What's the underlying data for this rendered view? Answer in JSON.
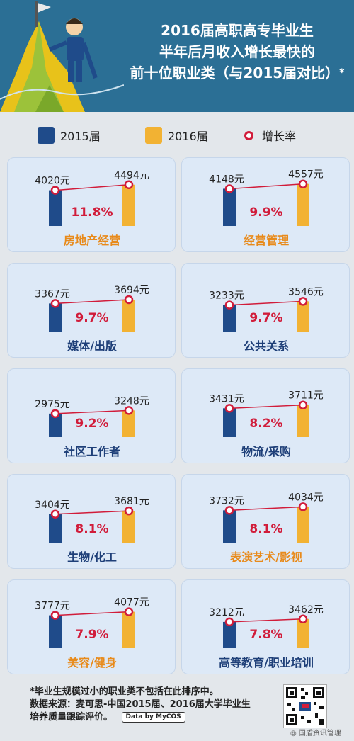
{
  "header": {
    "title_lines": [
      "2016届高职高专毕业生",
      "半年后月收入增长最快的",
      "前十位职业类（与2015届对比）"
    ],
    "title_star": "*"
  },
  "legend": {
    "item_2015": "2015届",
    "item_2016": "2016届",
    "item_rate": "增长率"
  },
  "colors": {
    "bar_2015": "#1f4b8a",
    "bar_2016": "#f2b233",
    "rate": "#d11c3a",
    "panel_bg": "#dde9f7",
    "header_bg": "#2b6f95"
  },
  "chart_data": {
    "type": "bar",
    "series": [
      {
        "name": "2015届",
        "values": [
          4020,
          4148,
          3367,
          3233,
          2975,
          3431,
          3404,
          3732,
          3777,
          3212
        ]
      },
      {
        "name": "2016届",
        "values": [
          4494,
          4557,
          3694,
          3546,
          3248,
          3711,
          3681,
          4034,
          4077,
          3462
        ]
      },
      {
        "name": "增长率",
        "values": [
          11.8,
          9.9,
          9.7,
          9.7,
          9.2,
          8.2,
          8.1,
          8.1,
          7.9,
          7.8
        ]
      }
    ],
    "categories": [
      "房地产经营",
      "经营管理",
      "媒体/出版",
      "公共关系",
      "社区工作者",
      "物流/采购",
      "生物/化工",
      "表演艺术/影视",
      "美容/健身",
      "高等教育/职业培训"
    ],
    "value_labels_2015": [
      "4020元",
      "4148元",
      "3367元",
      "3233元",
      "2975元",
      "3431元",
      "3404元",
      "3732元",
      "3777元",
      "3212元"
    ],
    "value_labels_2016": [
      "4494元",
      "4557元",
      "3694元",
      "3546元",
      "3248元",
      "3711元",
      "3681元",
      "4034元",
      "4077元",
      "3462元"
    ],
    "rate_labels": [
      "11.8%",
      "9.9%",
      "9.7%",
      "9.7%",
      "9.2%",
      "8.2%",
      "8.1%",
      "8.1%",
      "7.9%",
      "7.8%"
    ],
    "category_colors": [
      "#e88a1a",
      "#e88a1a",
      "#1e3f78",
      "#1e3f78",
      "#1e3f78",
      "#1e3f78",
      "#1e3f78",
      "#e88a1a",
      "#e88a1a",
      "#1e3f78"
    ],
    "ylim": [
      0,
      4600
    ],
    "legend_position": "top"
  },
  "footer": {
    "note_line1": "*毕业生规模过小的职业类不包括在此排序中。",
    "note_line2": "数据来源：麦可思-中国2015届、2016届大学毕业生",
    "note_line3": "培养质量跟踪评价。",
    "badge": "Data by MyCOS",
    "qr_caption": "国盾资讯管理"
  }
}
